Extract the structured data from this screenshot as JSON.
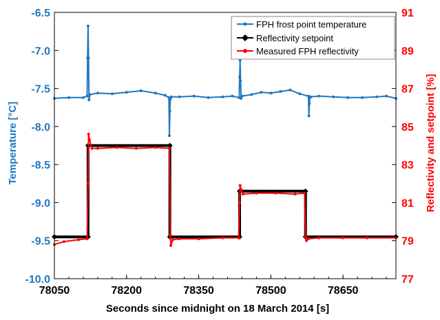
{
  "chart_data": {
    "type": "line",
    "xlabel": "Seconds since midnight on 18 March 2014 [s]",
    "ylabel_left": "Temperature [°C]",
    "ylabel_right": "Reflectivity and setpoint [%]",
    "xlim": [
      78050,
      78760
    ],
    "ylim_left": [
      -10.0,
      -6.5
    ],
    "ylim_right": [
      77,
      91
    ],
    "x_ticks": [
      "78050",
      "78200",
      "78350",
      "78500",
      "78650"
    ],
    "y_ticks_left": [
      "-6.5",
      "-7.0",
      "-7.5",
      "-8.0",
      "-8.5",
      "-9.0",
      "-9.5",
      "-10.0"
    ],
    "y_ticks_right": [
      "91",
      "89",
      "87",
      "85",
      "83",
      "81",
      "79",
      "77"
    ],
    "legend_position": "top-right",
    "colors": {
      "temperature": "#1f77c0",
      "setpoint": "#000000",
      "reflectivity": "#ff0000",
      "left_axis": "#1f77c0",
      "right_axis": "#ff0000"
    },
    "series": [
      {
        "name": "FPH frost  point temperature",
        "axis": "left",
        "marker": "dot",
        "x": [
          78050,
          78080,
          78110,
          78118,
          78119,
          78120,
          78121,
          78122,
          78124,
          78140,
          78170,
          78200,
          78230,
          78260,
          78280,
          78288,
          78289,
          78290,
          78291,
          78293,
          78310,
          78340,
          78370,
          78400,
          78420,
          78434,
          78435,
          78436,
          78437,
          78438,
          78440,
          78460,
          78480,
          78500,
          78520,
          78540,
          78560,
          78578,
          78579,
          78580,
          78581,
          78583,
          78600,
          78630,
          78660,
          78690,
          78720,
          78740,
          78760
        ],
        "y": [
          -7.63,
          -7.62,
          -7.62,
          -7.6,
          -7.1,
          -6.68,
          -7.1,
          -7.65,
          -7.58,
          -7.56,
          -7.57,
          -7.55,
          -7.53,
          -7.56,
          -7.59,
          -7.62,
          -8.12,
          -7.8,
          -7.64,
          -7.61,
          -7.61,
          -7.6,
          -7.62,
          -7.61,
          -7.6,
          -7.62,
          -7.35,
          -7.13,
          -7.4,
          -7.63,
          -7.6,
          -7.58,
          -7.55,
          -7.56,
          -7.54,
          -7.52,
          -7.57,
          -7.6,
          -7.86,
          -7.7,
          -7.62,
          -7.61,
          -7.6,
          -7.61,
          -7.62,
          -7.62,
          -7.61,
          -7.6,
          -7.63
        ]
      },
      {
        "name": "Reflectivity setpoint",
        "axis": "right",
        "marker": "diamond",
        "x": [
          78050,
          78120,
          78120,
          78290,
          78290,
          78435,
          78435,
          78572,
          78572,
          78760
        ],
        "y": [
          79.2,
          79.2,
          84.0,
          84.0,
          79.2,
          79.2,
          81.6,
          81.6,
          79.2,
          79.2
        ]
      },
      {
        "name": "Measured FPH reflectivity",
        "axis": "right",
        "marker": "dot",
        "x": [
          78050,
          78070,
          78100,
          78118,
          78120,
          78121,
          78123,
          78128,
          78140,
          78180,
          78220,
          78260,
          78289,
          78291,
          78292,
          78296,
          78310,
          78350,
          78400,
          78433,
          78435,
          78436,
          78438,
          78442,
          78470,
          78510,
          78550,
          78570,
          78572,
          78574,
          78578,
          78600,
          78650,
          78700,
          78760
        ],
        "y": [
          78.8,
          78.95,
          79.05,
          79.1,
          82.0,
          84.6,
          84.3,
          83.85,
          83.85,
          83.9,
          83.85,
          83.9,
          83.85,
          79.3,
          78.75,
          79.05,
          79.1,
          79.1,
          79.15,
          79.15,
          81.0,
          81.9,
          81.7,
          81.45,
          81.5,
          81.5,
          81.45,
          81.5,
          79.2,
          79.0,
          79.1,
          79.15,
          79.15,
          79.15,
          79.15
        ]
      }
    ]
  }
}
